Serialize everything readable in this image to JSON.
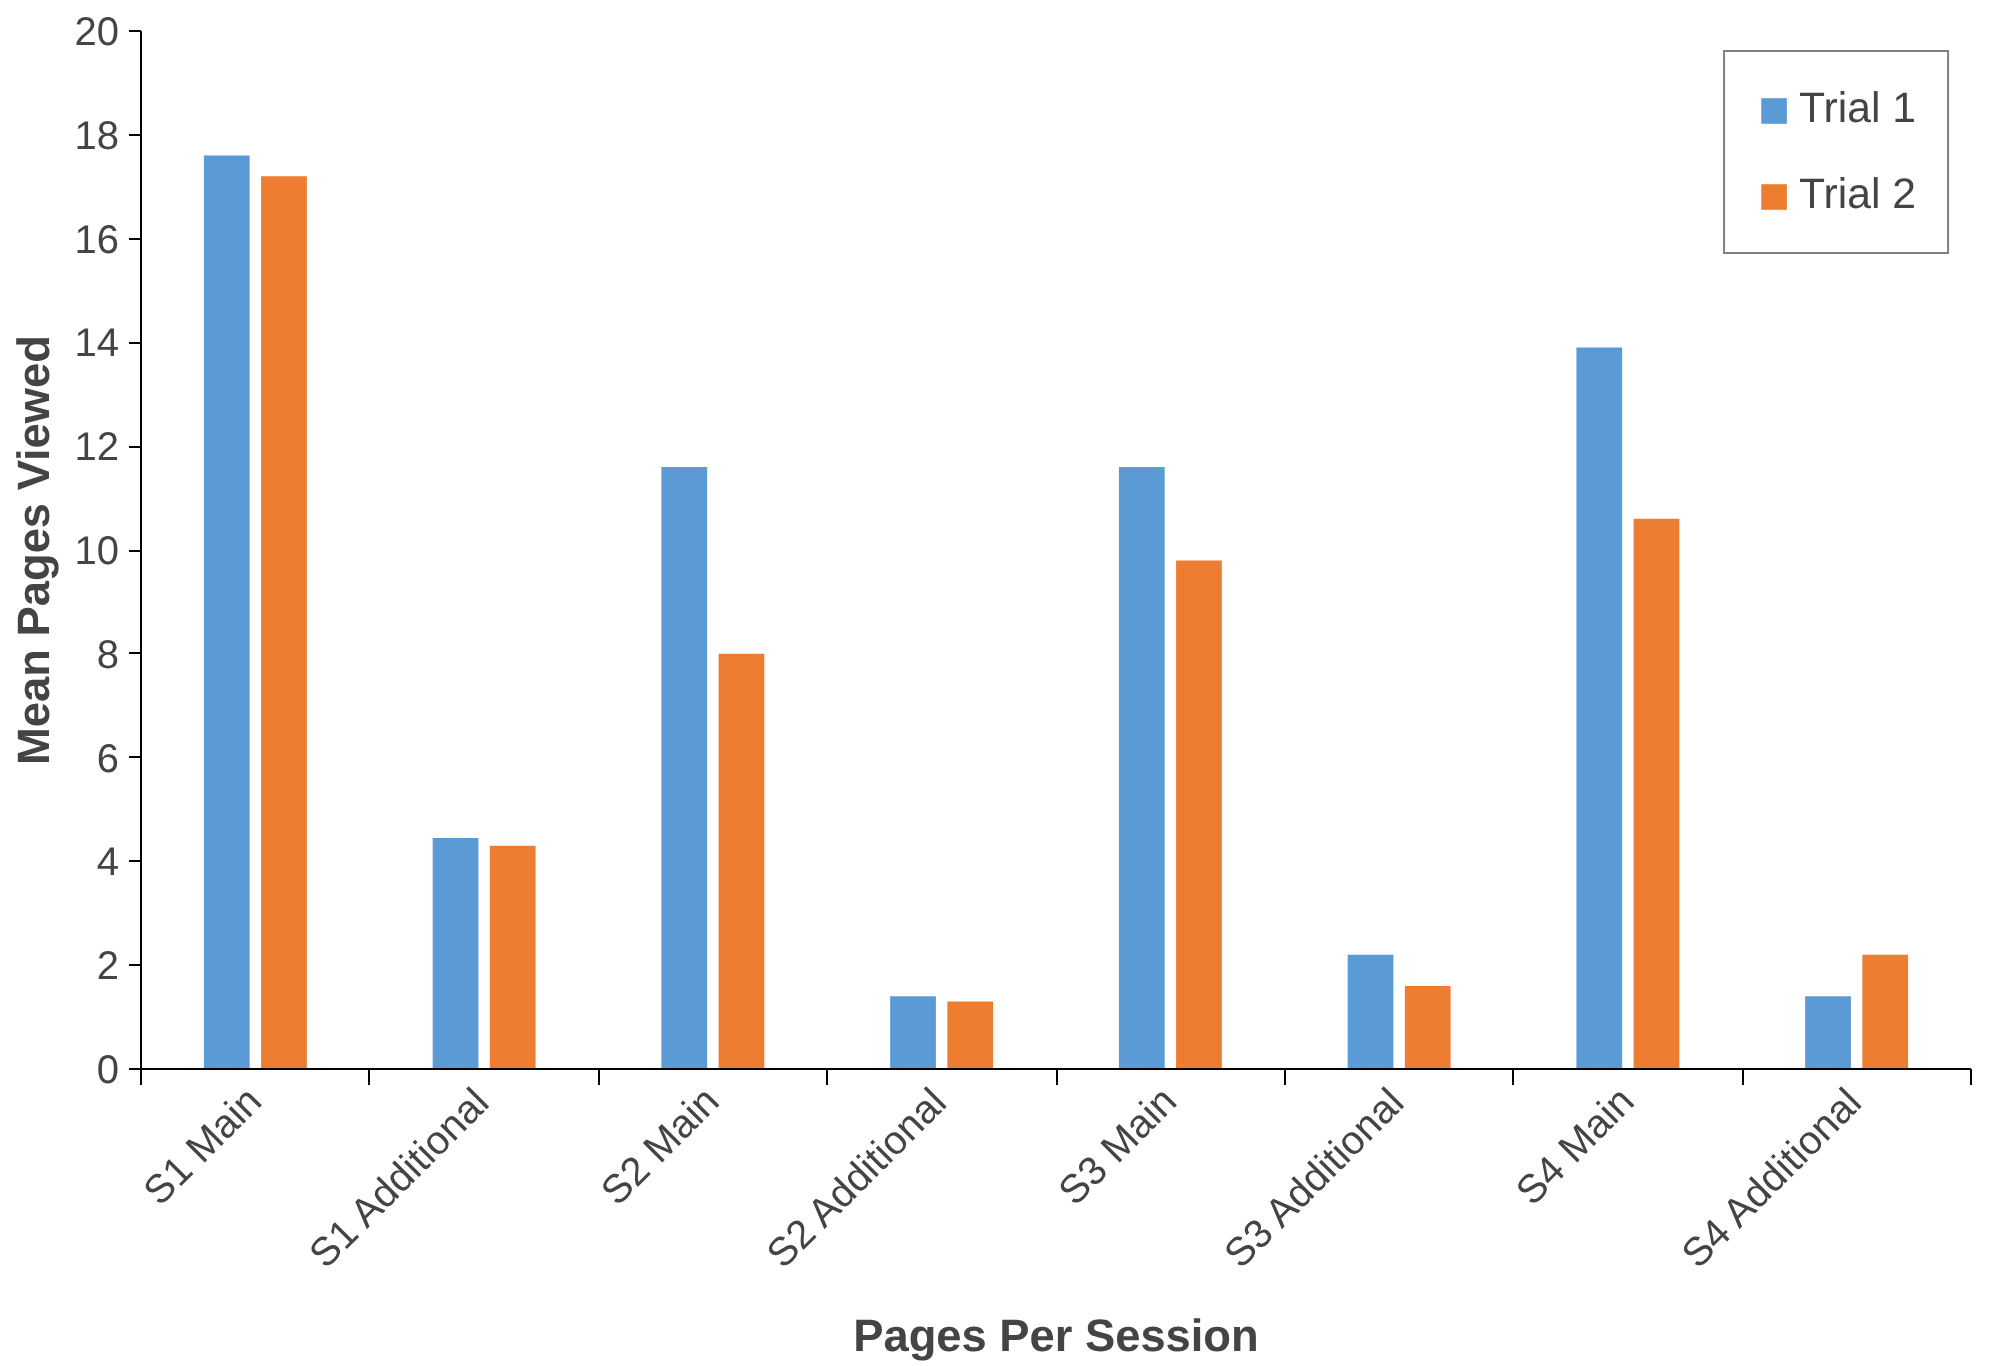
{
  "chart_data": {
    "type": "bar",
    "xlabel": "Pages Per Session",
    "ylabel": "Mean Pages Viewed",
    "categories": [
      "S1 Main",
      "S1 Additional",
      "S2 Main",
      "S2 Additional",
      "S3 Main",
      "S3 Additional",
      "S4 Main",
      "S4 Additional"
    ],
    "series": [
      {
        "name": "Trial 1",
        "color": "#5b9bd5",
        "values": [
          17.6,
          4.45,
          11.6,
          1.4,
          11.6,
          2.2,
          13.9,
          1.4
        ]
      },
      {
        "name": "Trial 2",
        "color": "#ed7d31",
        "values": [
          17.2,
          4.3,
          8.0,
          1.3,
          9.8,
          1.6,
          10.6,
          2.2
        ]
      }
    ],
    "ylim": [
      0,
      20
    ],
    "yticks": [
      0,
      2,
      4,
      6,
      8,
      10,
      12,
      14,
      16,
      18,
      20
    ],
    "grid": false,
    "legend": "top right"
  }
}
